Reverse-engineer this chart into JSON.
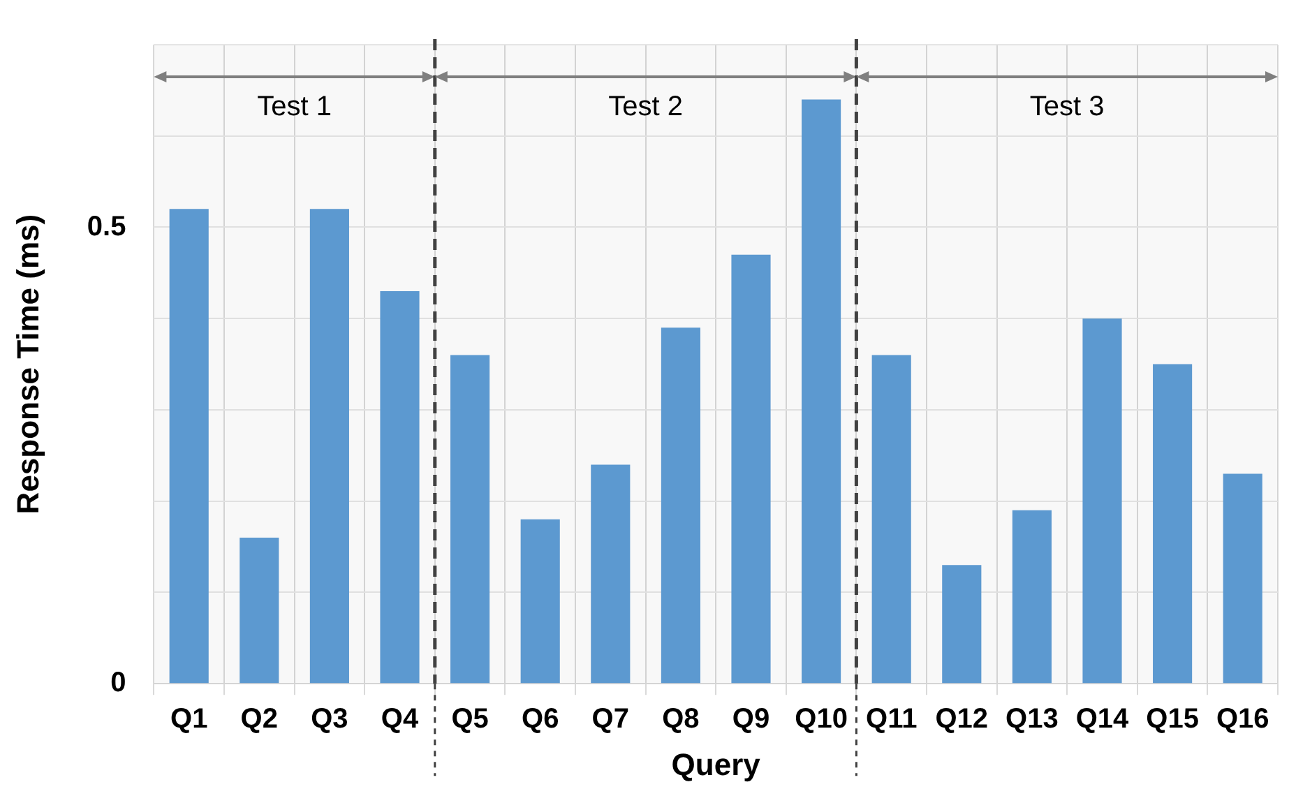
{
  "chart_data": {
    "type": "bar",
    "xlabel": "Query",
    "ylabel": "Response Time (ms)",
    "categories": [
      "Q1",
      "Q2",
      "Q3",
      "Q4",
      "Q5",
      "Q6",
      "Q7",
      "Q8",
      "Q9",
      "Q10",
      "Q11",
      "Q12",
      "Q13",
      "Q14",
      "Q15",
      "Q16"
    ],
    "values": [
      0.52,
      0.16,
      0.52,
      0.43,
      0.36,
      0.18,
      0.24,
      0.39,
      0.47,
      0.64,
      0.36,
      0.13,
      0.19,
      0.4,
      0.35,
      0.23
    ],
    "color": "#5b9bd5",
    "ylim": [
      0,
      0.7
    ],
    "yticks": [
      0,
      {
        "value": 0.1,
        "label": null
      },
      {
        "value": 0.2,
        "label": null
      },
      {
        "value": 0.3,
        "label": null
      },
      {
        "value": 0.4,
        "label": null
      },
      0.5,
      {
        "value": 0.6,
        "label": null
      },
      {
        "value": 0.7,
        "label": null
      }
    ],
    "grid": true,
    "bands": [
      {
        "axis": "x",
        "from": "Q1",
        "to": "Q4",
        "label": "Test 1",
        "color": "#7f7f7f"
      },
      {
        "axis": "x",
        "from": "Q5",
        "to": "Q10",
        "label": "Test 2",
        "color": "#7f7f7f"
      },
      {
        "axis": "x",
        "from": "Q11",
        "to": "Q16",
        "label": "Test 3",
        "color": "#7f7f7f"
      }
    ]
  }
}
